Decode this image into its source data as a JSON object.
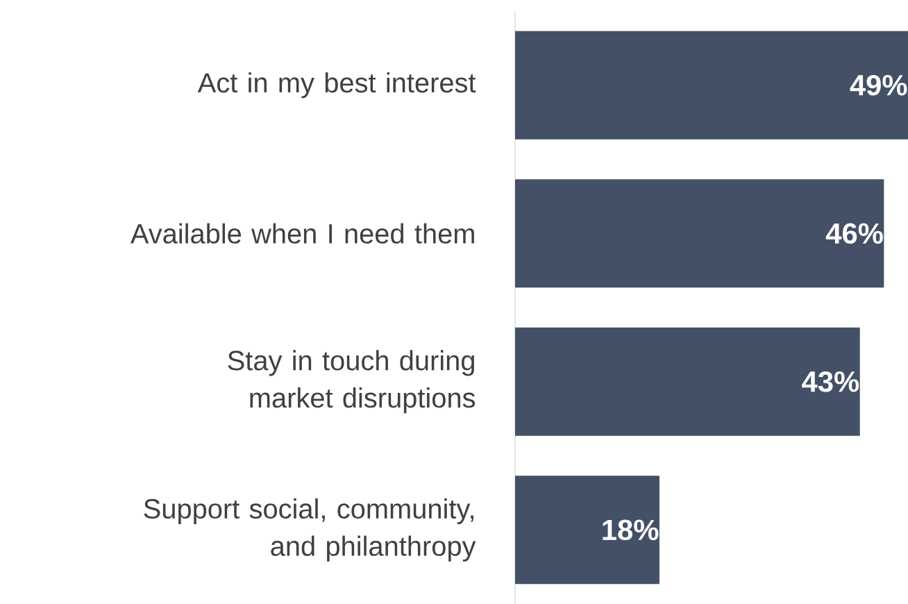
{
  "chart_data": {
    "type": "bar",
    "orientation": "horizontal",
    "categories": [
      "Act in my best interest",
      "Available when I need them",
      "Stay in touch during market disruptions",
      "Support social, community, and philanthropy"
    ],
    "values": [
      49,
      46,
      43,
      18
    ],
    "value_labels": [
      "49%",
      "46%",
      "43%",
      "18%"
    ],
    "color": "#435066"
  }
}
